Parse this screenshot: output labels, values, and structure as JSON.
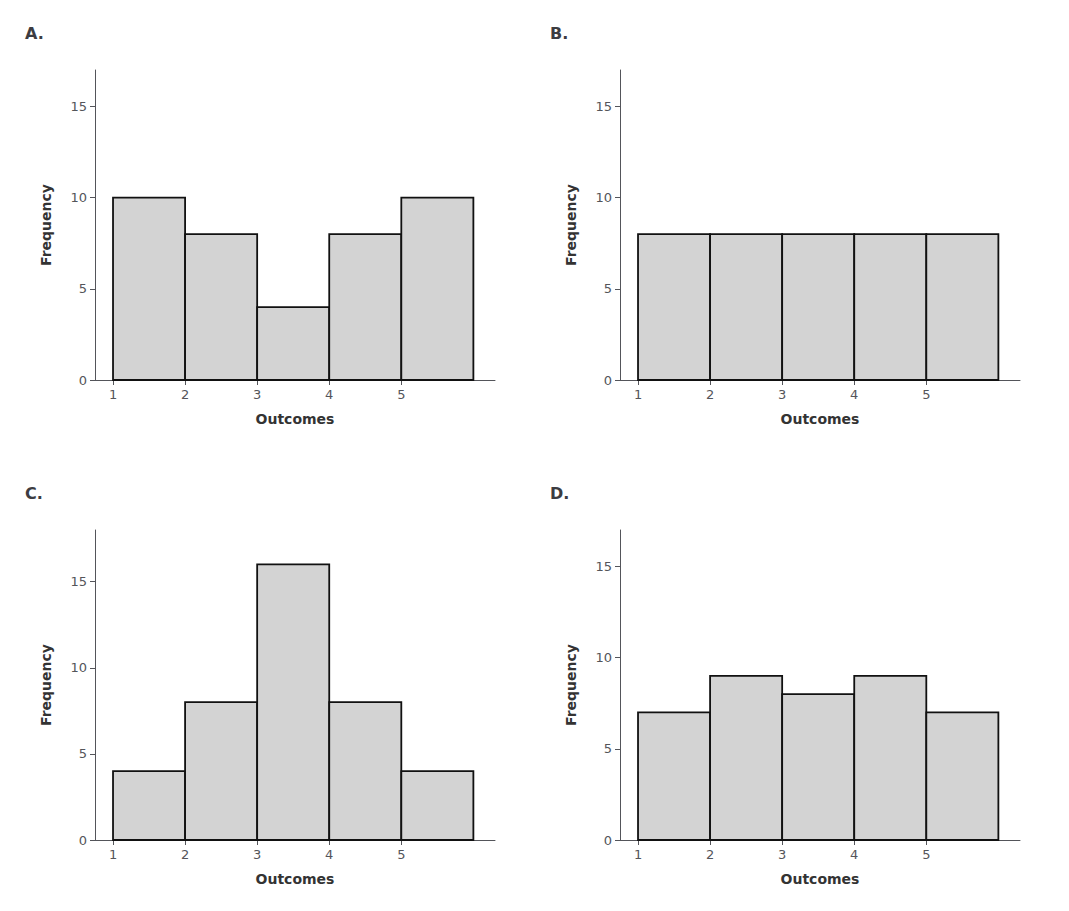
{
  "chart_data": [
    {
      "type": "bar",
      "title": "A.",
      "xlabel": "Outcomes",
      "ylabel": "Frequency",
      "x": [
        1,
        2,
        3,
        4,
        5
      ],
      "values": [
        10,
        8,
        4,
        8,
        10
      ],
      "color": "#d3d3d3",
      "xlim": [
        0.75,
        6.3
      ],
      "xticks": [
        1,
        2,
        3,
        4,
        5
      ],
      "ylim": [
        0,
        17
      ],
      "yticks": [
        0,
        5,
        10,
        15
      ],
      "grid": false
    },
    {
      "type": "bar",
      "title": "B.",
      "xlabel": "Outcomes",
      "ylabel": "Frequency",
      "x": [
        1,
        2,
        3,
        4,
        5
      ],
      "values": [
        8,
        8,
        8,
        8,
        8
      ],
      "color": "#d3d3d3",
      "xlim": [
        0.75,
        6.3
      ],
      "xticks": [
        1,
        2,
        3,
        4,
        5
      ],
      "ylim": [
        0,
        17
      ],
      "yticks": [
        0,
        5,
        10,
        15
      ],
      "grid": false
    },
    {
      "type": "bar",
      "title": "C.",
      "xlabel": "Outcomes",
      "ylabel": "Frequency",
      "x": [
        1,
        2,
        3,
        4,
        5
      ],
      "values": [
        4,
        8,
        16,
        8,
        4
      ],
      "color": "#d3d3d3",
      "xlim": [
        0.75,
        6.3
      ],
      "xticks": [
        1,
        2,
        3,
        4,
        5
      ],
      "ylim": [
        0,
        18
      ],
      "yticks": [
        0,
        5,
        10,
        15
      ],
      "grid": false
    },
    {
      "type": "bar",
      "title": "D.",
      "xlabel": "Outcomes",
      "ylabel": "Frequency",
      "x": [
        1,
        2,
        3,
        4,
        5
      ],
      "values": [
        7,
        9,
        8,
        9,
        7
      ],
      "color": "#d3d3d3",
      "xlim": [
        0.75,
        6.3
      ],
      "xticks": [
        1,
        2,
        3,
        4,
        5
      ],
      "ylim": [
        0,
        17
      ],
      "yticks": [
        0,
        5,
        10,
        15
      ],
      "grid": false
    }
  ]
}
